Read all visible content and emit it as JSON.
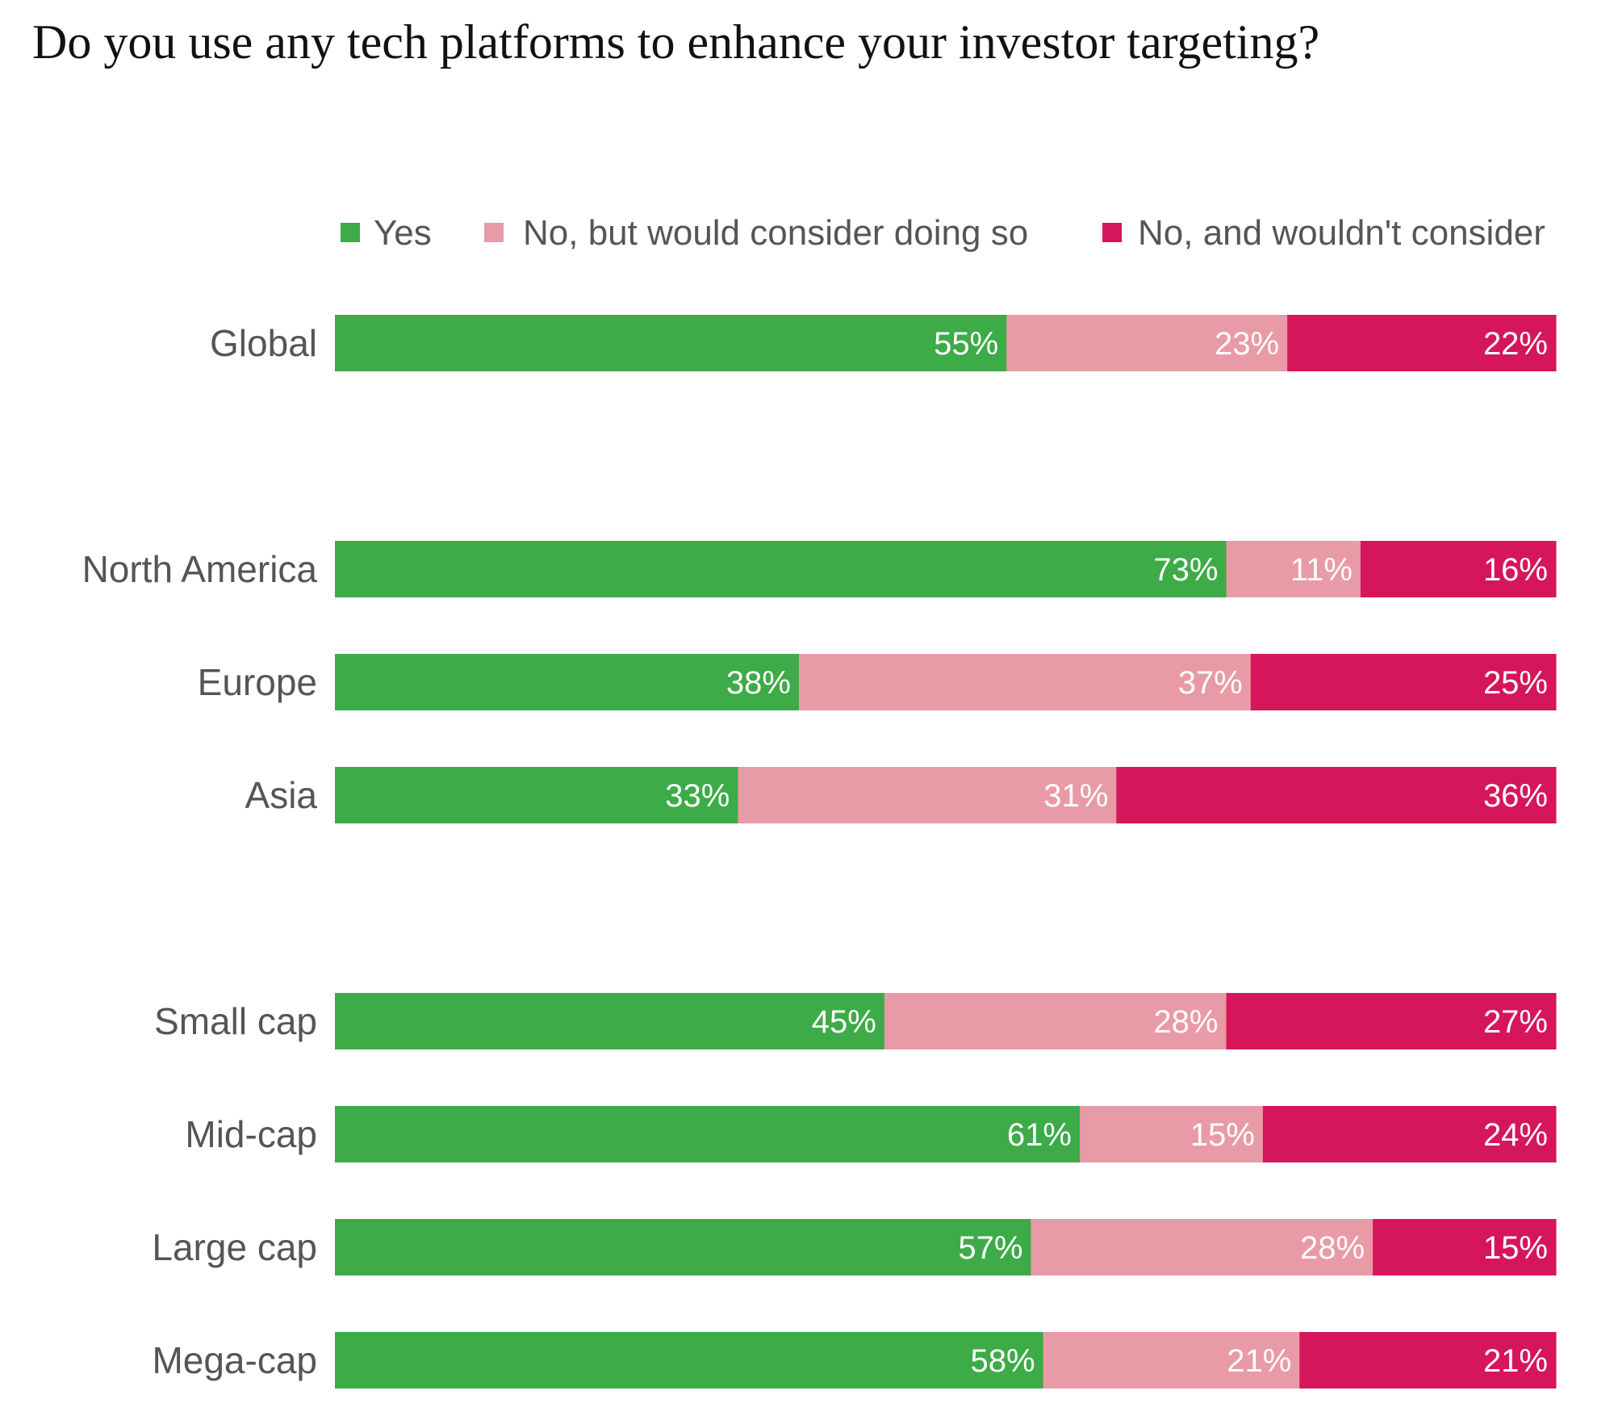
{
  "chart_data": {
    "type": "bar",
    "orientation": "horizontal",
    "stacked": true,
    "title": "Do you use any tech platforms to enhance your investor targeting?",
    "legend_position": "top",
    "grid": false,
    "xlim": [
      0,
      100
    ],
    "categories": [
      "Global",
      "North America",
      "Europe",
      "Asia",
      "Small cap",
      "Mid-cap",
      "Large cap",
      "Mega-cap"
    ],
    "series": [
      {
        "name": "Yes",
        "color": "#3dab47",
        "values": [
          55,
          73,
          38,
          33,
          45,
          61,
          57,
          58
        ]
      },
      {
        "name": "No, but would consider doing so",
        "color": "#e89ba6",
        "values": [
          23,
          11,
          37,
          31,
          28,
          15,
          28,
          21
        ]
      },
      {
        "name": "No, and wouldn't consider",
        "color": "#d6165a",
        "values": [
          22,
          16,
          25,
          36,
          27,
          24,
          15,
          21
        ]
      }
    ]
  }
}
